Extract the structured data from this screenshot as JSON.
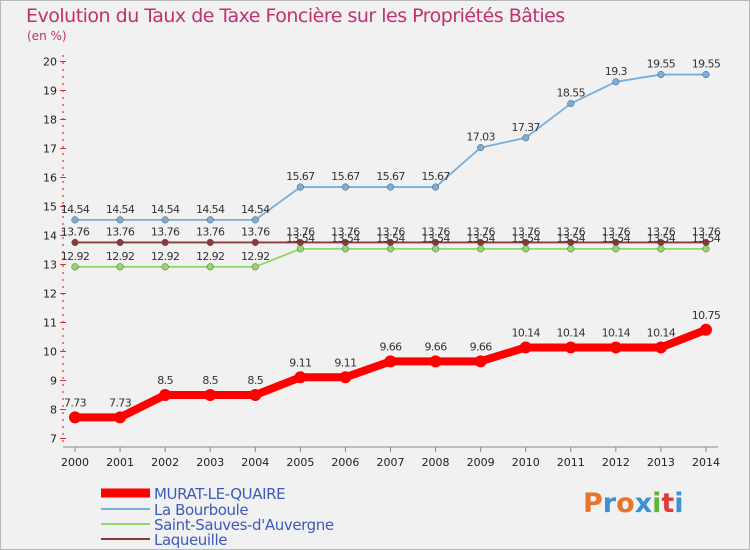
{
  "title": "Evolution du Taux de Taxe Foncière sur les Propriétés Bâties",
  "subtitle": "(en %)",
  "logo": {
    "text": "Proxiti",
    "colors": [
      "#e8742a",
      "#3f8fd6",
      "#e8742a",
      "#3f8fd6",
      "#5cb534",
      "#e03a3a",
      "#3f8fd6"
    ]
  },
  "chart_data": {
    "type": "line",
    "title": "Evolution du Taux de Taxe Foncière sur les Propriétés Bâties",
    "subtitle": "(en %)",
    "xlabel": "",
    "ylabel": "",
    "x": [
      "2000",
      "2001",
      "2002",
      "2003",
      "2004",
      "2005",
      "2006",
      "2007",
      "2008",
      "2009",
      "2010",
      "2011",
      "2012",
      "2013",
      "2014"
    ],
    "yticks": [
      "7",
      "8",
      "9",
      "10",
      "11",
      "12",
      "13",
      "14",
      "15",
      "16",
      "17",
      "18",
      "19",
      "20"
    ],
    "ylim": [
      7,
      20
    ],
    "grid": false,
    "legend_position": "bottom-left",
    "series": [
      {
        "name": "MURAT-LE-QUAIRE",
        "color": "#ff0000",
        "values": [
          7.73,
          7.73,
          8.5,
          8.5,
          8.5,
          9.11,
          9.11,
          9.66,
          9.66,
          9.66,
          10.14,
          10.14,
          10.14,
          10.14,
          10.75
        ],
        "labels": [
          "7.73",
          "7.73",
          "8.5",
          "8.5",
          "8.5",
          "9.11",
          "9.11",
          "9.66",
          "9.66",
          "9.66",
          "10.14",
          "10.14",
          "10.14",
          "10.14",
          "10.75"
        ]
      },
      {
        "name": "La Bourboule",
        "color": "#78aedc",
        "values": [
          14.54,
          14.54,
          14.54,
          14.54,
          14.54,
          15.67,
          15.67,
          15.67,
          15.67,
          17.03,
          17.37,
          18.55,
          19.3,
          19.55,
          19.55
        ],
        "labels": [
          "14.54",
          "14.54",
          "14.54",
          "14.54",
          "14.54",
          "15.67",
          "15.67",
          "15.67",
          "15.67",
          "17.03",
          "17.37",
          "18.55",
          "19.3",
          "19.55",
          "19.55"
        ]
      },
      {
        "name": "Saint-Sauves-d'Auvergne",
        "color": "#93d669",
        "values": [
          12.92,
          12.92,
          12.92,
          12.92,
          12.92,
          13.54,
          13.54,
          13.54,
          13.54,
          13.54,
          13.54,
          13.54,
          13.54,
          13.54,
          13.54
        ],
        "labels": [
          "12.92",
          "12.92",
          "12.92",
          "12.92",
          "12.92",
          "13.54",
          "13.54",
          "13.54",
          "13.54",
          "13.54",
          "13.54",
          "13.54",
          "13.54",
          "13.54",
          "13.54"
        ]
      },
      {
        "name": "Laqueuille",
        "color": "#8b3a3a",
        "values": [
          13.76,
          13.76,
          13.76,
          13.76,
          13.76,
          13.76,
          13.76,
          13.76,
          13.76,
          13.76,
          13.76,
          13.76,
          13.76,
          13.76,
          13.76
        ],
        "labels": [
          "13.76",
          "13.76",
          "13.76",
          "13.76",
          "13.76",
          "13.76",
          "13.76",
          "13.76",
          "13.76",
          "13.76",
          "13.76",
          "13.76",
          "13.76",
          "13.76",
          "13.76"
        ]
      }
    ]
  }
}
